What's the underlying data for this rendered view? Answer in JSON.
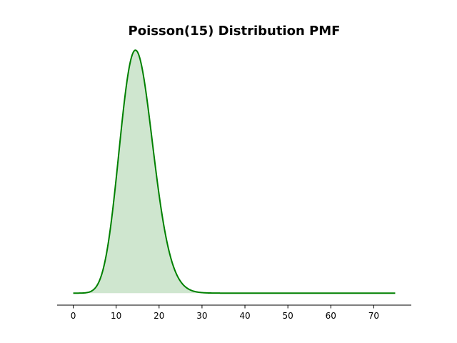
{
  "chart_data": {
    "type": "area",
    "title": "Poisson(15) Distribution PMF",
    "xlabel": "",
    "ylabel": "",
    "distribution": "Poisson",
    "lambda": 15,
    "xlim": [
      -3.75,
      78.75
    ],
    "ylim": [
      -0.0051,
      0.107
    ],
    "x_ticks": [
      0,
      10,
      20,
      30,
      40,
      50,
      60,
      70
    ],
    "x_tick_labels": [
      "0",
      "10",
      "20",
      "30",
      "40",
      "50",
      "60",
      "70"
    ],
    "y_axis_visible": false,
    "grid": false,
    "x_range": [
      0,
      75
    ],
    "peak": {
      "x": 14.5,
      "y": 0.1024
    },
    "points": [
      {
        "x": 0,
        "y": 0.0
      },
      {
        "x": 3,
        "y": 0.0002
      },
      {
        "x": 5,
        "y": 0.0019
      },
      {
        "x": 7,
        "y": 0.0104
      },
      {
        "x": 9,
        "y": 0.0324
      },
      {
        "x": 11,
        "y": 0.0663
      },
      {
        "x": 13,
        "y": 0.0956
      },
      {
        "x": 14.5,
        "y": 0.1024
      },
      {
        "x": 16,
        "y": 0.096
      },
      {
        "x": 18,
        "y": 0.0706
      },
      {
        "x": 20,
        "y": 0.0418
      },
      {
        "x": 22,
        "y": 0.0204
      },
      {
        "x": 24,
        "y": 0.0083
      },
      {
        "x": 26,
        "y": 0.0029
      },
      {
        "x": 28,
        "y": 0.0009
      },
      {
        "x": 30,
        "y": 0.0002
      },
      {
        "x": 35,
        "y": 0.0
      },
      {
        "x": 75,
        "y": 0.0
      }
    ],
    "colors": {
      "line": "#008000",
      "fill": "#cfe6cf",
      "axis": "#000000"
    }
  }
}
